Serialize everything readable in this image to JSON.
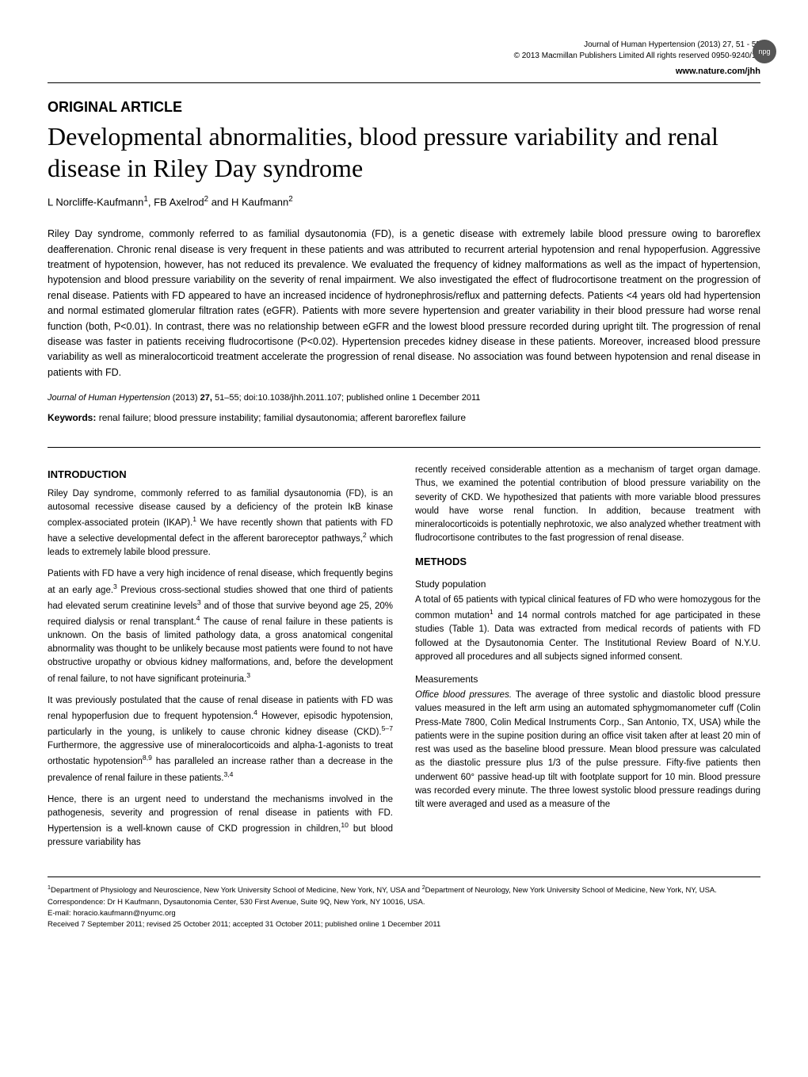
{
  "header": {
    "journal_line": "Journal of Human Hypertension (2013) 27, 51 - 55",
    "copyright": "© 2013 Macmillan Publishers Limited   All rights reserved 0950-9240/13",
    "url": "www.nature.com/jhh",
    "badge": "npg"
  },
  "article_type": "ORIGINAL ARTICLE",
  "title": "Developmental abnormalities, blood pressure variability and renal disease in Riley Day syndrome",
  "authors_html": "L Norcliffe-Kaufmann<sup>1</sup>, FB Axelrod<sup>2</sup> and H Kaufmann<sup>2</sup>",
  "abstract": "Riley Day syndrome, commonly referred to as familial dysautonomia (FD), is a genetic disease with extremely labile blood pressure owing to baroreflex deafferenation. Chronic renal disease is very frequent in these patients and was attributed to recurrent arterial hypotension and renal hypoperfusion. Aggressive treatment of hypotension, however, has not reduced its prevalence. We evaluated the frequency of kidney malformations as well as the impact of hypertension, hypotension and blood pressure variability on the severity of renal impairment. We also investigated the effect of fludrocortisone treatment on the progression of renal disease. Patients with FD appeared to have an increased incidence of hydronephrosis/reflux and patterning defects. Patients <4 years old had hypertension and normal estimated glomerular filtration rates (eGFR). Patients with more severe hypertension and greater variability in their blood pressure had worse renal function (both, P<0.01). In contrast, there was no relationship between eGFR and the lowest blood pressure recorded during upright tilt. The progression of renal disease was faster in patients receiving fludrocortisone (P<0.02). Hypertension precedes kidney disease in these patients. Moreover, increased blood pressure variability as well as mineralocorticoid treatment accelerate the progression of renal disease. No association was found between hypotension and renal disease in patients with FD.",
  "citation": {
    "journal": "Journal of Human Hypertension",
    "year": "(2013)",
    "volume": "27,",
    "pages": "51–55;",
    "doi": "doi:10.1038/jhh.2011.107;",
    "pub_online": "published online 1 December 2011"
  },
  "keywords": {
    "label": "Keywords:",
    "text": "renal failure; blood pressure instability; familial dysautonomia; afferent baroreflex failure"
  },
  "left_col": {
    "intro_head": "INTRODUCTION",
    "p1_html": "Riley Day syndrome, commonly referred to as familial dysautonomia (FD), is an autosomal recessive disease caused by a deficiency of the protein IκB kinase complex-associated protein (IKAP).<sup>1</sup> We have recently shown that patients with FD have a selective developmental defect in the afferent baroreceptor pathways,<sup>2</sup> which leads to extremely labile blood pressure.",
    "p2_html": "Patients with FD have a very high incidence of renal disease, which frequently begins at an early age.<sup>3</sup> Previous cross-sectional studies showed that one third of patients had elevated serum creatinine levels<sup>3</sup> and of those that survive beyond age 25, 20% required dialysis or renal transplant.<sup>4</sup> The cause of renal failure in these patients is unknown. On the basis of limited pathology data, a gross anatomical congenital abnormality was thought to be unlikely because most patients were found to not have obstructive uropathy or obvious kidney malformations, and, before the development of renal failure, to not have significant proteinuria.<sup>3</sup>",
    "p3_html": "It was previously postulated that the cause of renal disease in patients with FD was renal hypoperfusion due to frequent hypotension.<sup>4</sup> However, episodic hypotension, particularly in the young, is unlikely to cause chronic kidney disease (CKD).<sup>5–7</sup> Furthermore, the aggressive use of mineralocorticoids and alpha-1-agonists to treat orthostatic hypotension<sup>8,9</sup> has paralleled an increase rather than a decrease in the prevalence of renal failure in these patients.<sup>3,4</sup>",
    "p4_html": "Hence, there is an urgent need to understand the mechanisms involved in the pathogenesis, severity and progression of renal disease in patients with FD. Hypertension is a well-known cause of CKD progression in children,<sup>10</sup> but blood pressure variability has"
  },
  "right_col": {
    "p1": "recently received considerable attention as a mechanism of target organ damage. Thus, we examined the potential contribution of blood pressure variability on the severity of CKD. We hypothesized that patients with more variable blood pressures would have worse renal function. In addition, because treatment with mineralocorticoids is potentially nephrotoxic, we also analyzed whether treatment with fludrocortisone contributes to the fast progression of renal disease.",
    "methods_head": "METHODS",
    "studypop_head": "Study population",
    "p2_html": "A total of 65 patients with typical clinical features of FD who were homozygous for the common mutation<sup>1</sup> and 14 normal controls matched for age participated in these studies (Table 1). Data was extracted from medical records of patients with FD followed at the Dysautonomia Center. The Institutional Review Board of N.Y.U. approved all procedures and all subjects signed informed consent.",
    "measurements_head": "Measurements",
    "office_bp_head": "Office blood pressures.",
    "p3": "The average of three systolic and diastolic blood pressure values measured in the left arm using an automated sphygmomanometer cuff (Colin Press-Mate 7800, Colin Medical Instruments Corp., San Antonio, TX, USA) while the patients were in the supine position during an office visit taken after at least 20 min of rest was used as the baseline blood pressure. Mean blood pressure was calculated as the diastolic pressure plus 1/3 of the pulse pressure. Fifty-five patients then underwent 60° passive head-up tilt with footplate support for 10 min. Blood pressure was recorded every minute. The three lowest systolic blood pressure readings during tilt were averaged and used as a measure of the"
  },
  "footnotes": {
    "affiliations_html": "<sup>1</sup>Department of Physiology and Neuroscience, New York University School of Medicine, New York, NY, USA and <sup>2</sup>Department of Neurology, New York University School of Medicine, New York, NY, USA. Correspondence: Dr H Kaufmann, Dysautonomia Center, 530 First Avenue, Suite 9Q, New York, NY 10016, USA.",
    "email": "E-mail: horacio.kaufmann@nyumc.org",
    "dates": "Received 7 September 2011; revised 25 October 2011; accepted 31 October 2011; published online 1 December 2011"
  }
}
